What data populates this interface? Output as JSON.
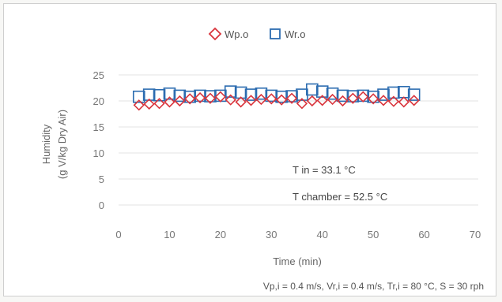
{
  "chart_data": {
    "type": "scatter",
    "title": "",
    "xlabel": "Time (min)",
    "ylabel_line1": "Humidity",
    "ylabel_line2": "(g V/kg Dry Air)",
    "xlim": [
      0,
      70
    ],
    "ylim": [
      0,
      25
    ],
    "xticks": [
      "0",
      "10",
      "20",
      "30",
      "40",
      "50",
      "60",
      "70"
    ],
    "yticks": [
      "0",
      "5",
      "10",
      "15",
      "20",
      "25"
    ],
    "grid": "horizontal",
    "legend_position": "top-center",
    "series": [
      {
        "name": "Wp.o",
        "marker": "diamond",
        "color": "#d9343c",
        "x": [
          4,
          6,
          8,
          10,
          12,
          14,
          16,
          18,
          20,
          22,
          24,
          26,
          28,
          30,
          32,
          34,
          36,
          38,
          40,
          42,
          44,
          46,
          48,
          50,
          52,
          54,
          56,
          58
        ],
        "y": [
          19.2,
          19.4,
          19.5,
          19.8,
          20.0,
          20.4,
          20.6,
          20.5,
          20.8,
          20.2,
          19.8,
          20.1,
          20.3,
          20.4,
          20.2,
          20.5,
          19.5,
          20.0,
          20.1,
          20.3,
          20.0,
          20.5,
          20.8,
          20.4,
          20.1,
          19.9,
          19.8,
          20.1
        ]
      },
      {
        "name": "Wr.o",
        "marker": "square",
        "color": "#2c6cb0",
        "x": [
          4,
          6,
          8,
          10,
          12,
          14,
          16,
          18,
          20,
          22,
          24,
          26,
          28,
          30,
          32,
          34,
          36,
          38,
          40,
          42,
          44,
          46,
          48,
          50,
          52,
          54,
          56,
          58
        ],
        "y": [
          20.8,
          21.2,
          21.1,
          21.4,
          21.0,
          20.8,
          21.0,
          20.9,
          21.0,
          21.8,
          21.6,
          21.2,
          21.4,
          21.0,
          20.8,
          20.9,
          21.2,
          22.2,
          21.8,
          21.4,
          21.0,
          20.9,
          21.0,
          20.8,
          21.2,
          21.6,
          21.7,
          21.2
        ]
      }
    ],
    "annotations": {
      "t_in": "T in = 33.1 °C",
      "t_chamber": "T chamber = 52.5 °C",
      "conditions": "Vp,i = 0.4 m/s, Vr,i = 0.4 m/s, Tr,i = 80 °C, S = 30 rph"
    }
  }
}
